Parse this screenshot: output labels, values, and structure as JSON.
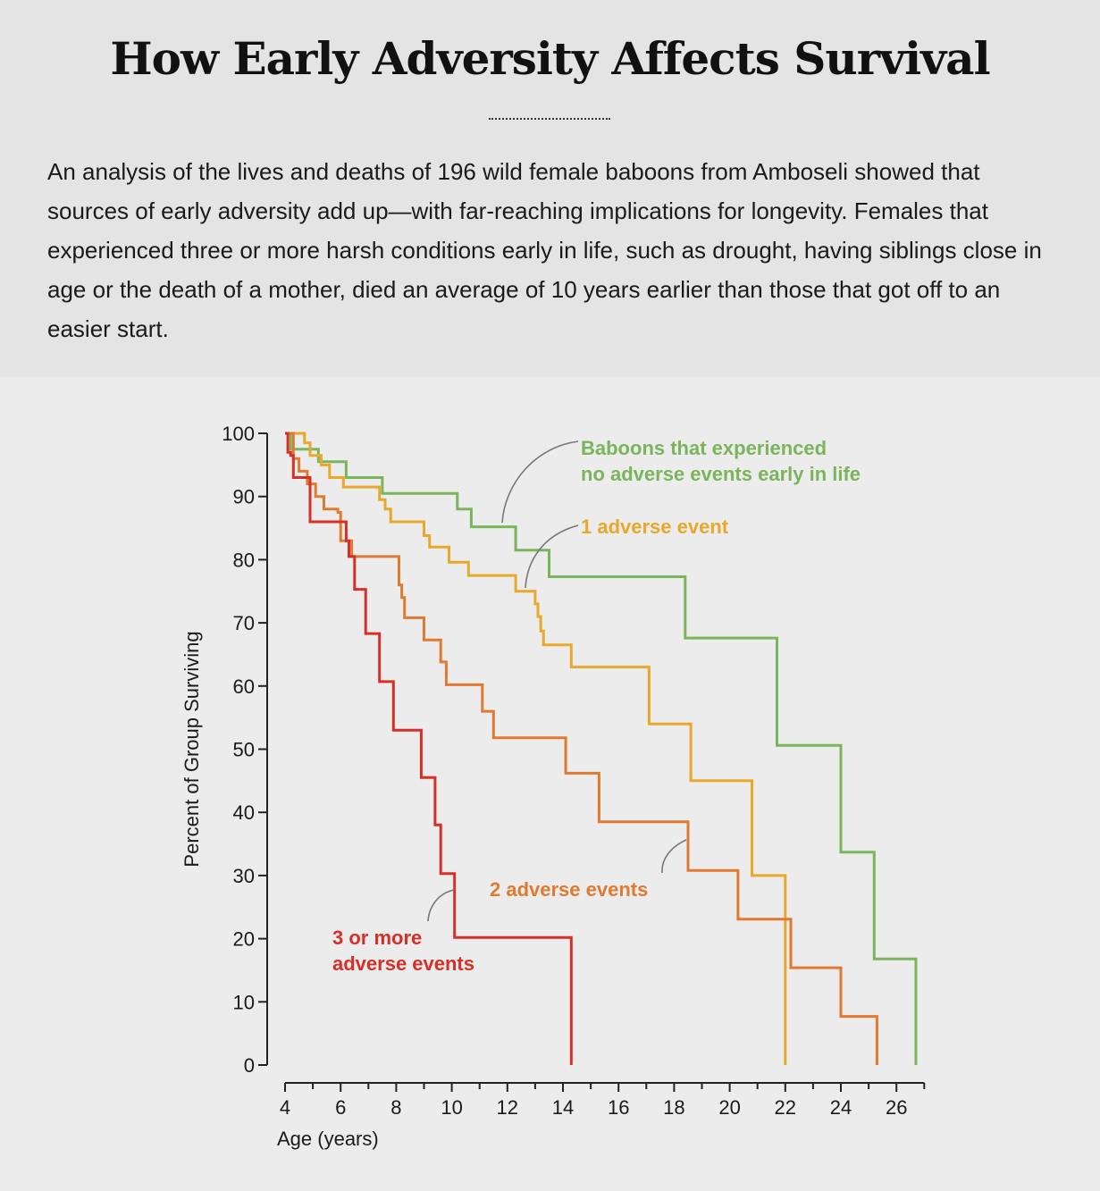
{
  "header": {
    "title": "How Early Adversity Affects Survival",
    "intro": "An analysis of the lives and deaths of 196 wild female baboons from Amboseli showed that sources of early adversity add up—with far-reaching implications for longevity. Females that experienced three or more harsh conditions early in life, such as drought, having siblings close in age or the death of a mother, died an average of 10 years earlier than those that got off to an easier start."
  },
  "chart_data": {
    "type": "line",
    "step": true,
    "xlabel": "Age (years)",
    "ylabel": "Percent of Group Surviving",
    "xlim": [
      4,
      27
    ],
    "ylim": [
      0,
      100
    ],
    "x_ticks": [
      4,
      6,
      8,
      10,
      12,
      14,
      16,
      18,
      20,
      22,
      24,
      26
    ],
    "y_ticks": [
      0,
      10,
      20,
      30,
      40,
      50,
      60,
      70,
      80,
      90,
      100
    ],
    "grid": false,
    "series": [
      {
        "name": "Baboons that experienced no adverse events early in life",
        "color": "#7ab55c",
        "points": [
          [
            4,
            100
          ],
          [
            4.2,
            100
          ],
          [
            4.2,
            97.5
          ],
          [
            5.2,
            97.5
          ],
          [
            5.2,
            95.5
          ],
          [
            6.2,
            95.5
          ],
          [
            6.2,
            93
          ],
          [
            7.5,
            93
          ],
          [
            7.5,
            90.5
          ],
          [
            10.2,
            90.5
          ],
          [
            10.2,
            88
          ],
          [
            10.7,
            88
          ],
          [
            10.7,
            85.2
          ],
          [
            12.3,
            85.2
          ],
          [
            12.3,
            81.5
          ],
          [
            13.5,
            81.5
          ],
          [
            13.5,
            77.3
          ],
          [
            18.4,
            77.3
          ],
          [
            18.4,
            67.6
          ],
          [
            21.7,
            67.6
          ],
          [
            21.7,
            50.6
          ],
          [
            24,
            50.6
          ],
          [
            24,
            33.7
          ],
          [
            25.2,
            33.7
          ],
          [
            25.2,
            16.8
          ],
          [
            26.7,
            16.8
          ],
          [
            26.7,
            0
          ]
        ]
      },
      {
        "name": "1 adverse event",
        "color": "#e8a82a",
        "points": [
          [
            4,
            100
          ],
          [
            4.7,
            100
          ],
          [
            4.7,
            98.5
          ],
          [
            4.9,
            98.5
          ],
          [
            4.9,
            96.5
          ],
          [
            5.3,
            96.5
          ],
          [
            5.3,
            95
          ],
          [
            5.6,
            95
          ],
          [
            5.6,
            93
          ],
          [
            6.1,
            93
          ],
          [
            6.1,
            91.5
          ],
          [
            7.4,
            91.5
          ],
          [
            7.4,
            89.5
          ],
          [
            7.6,
            89.5
          ],
          [
            7.6,
            88
          ],
          [
            7.8,
            88
          ],
          [
            7.8,
            86
          ],
          [
            9,
            86
          ],
          [
            9,
            83.8
          ],
          [
            9.2,
            83.8
          ],
          [
            9.2,
            82
          ],
          [
            9.9,
            82
          ],
          [
            9.9,
            79.6
          ],
          [
            10.6,
            79.6
          ],
          [
            10.6,
            77.5
          ],
          [
            12.3,
            77.5
          ],
          [
            12.3,
            75
          ],
          [
            13,
            75
          ],
          [
            13,
            73
          ],
          [
            13.1,
            73
          ],
          [
            13.1,
            71
          ],
          [
            13.2,
            71
          ],
          [
            13.2,
            68.7
          ],
          [
            13.3,
            68.7
          ],
          [
            13.3,
            66.5
          ],
          [
            14.3,
            66.5
          ],
          [
            14.3,
            63
          ],
          [
            17.1,
            63
          ],
          [
            17.1,
            54
          ],
          [
            18.6,
            54
          ],
          [
            18.6,
            45
          ],
          [
            20.8,
            45
          ],
          [
            20.8,
            30
          ],
          [
            22,
            30
          ],
          [
            22,
            0
          ]
        ]
      },
      {
        "name": "2 adverse events",
        "color": "#e07a30",
        "points": [
          [
            4,
            100
          ],
          [
            4.3,
            100
          ],
          [
            4.3,
            96
          ],
          [
            4.5,
            96
          ],
          [
            4.5,
            94
          ],
          [
            4.8,
            94
          ],
          [
            4.8,
            92
          ],
          [
            5.1,
            92
          ],
          [
            5.1,
            90
          ],
          [
            5.4,
            90
          ],
          [
            5.4,
            88
          ],
          [
            5.9,
            88
          ],
          [
            5.9,
            87.5
          ],
          [
            6,
            87.5
          ],
          [
            6,
            83
          ],
          [
            6.4,
            83
          ],
          [
            6.4,
            80.5
          ],
          [
            8.1,
            80.5
          ],
          [
            8.1,
            76
          ],
          [
            8.2,
            76
          ],
          [
            8.2,
            74
          ],
          [
            8.3,
            74
          ],
          [
            8.3,
            70.8
          ],
          [
            9,
            70.8
          ],
          [
            9,
            67.3
          ],
          [
            9.6,
            67.3
          ],
          [
            9.6,
            63.8
          ],
          [
            9.8,
            63.8
          ],
          [
            9.8,
            60.2
          ],
          [
            11.1,
            60.2
          ],
          [
            11.1,
            56
          ],
          [
            11.5,
            56
          ],
          [
            11.5,
            51.8
          ],
          [
            14.1,
            51.8
          ],
          [
            14.1,
            46.2
          ],
          [
            15.3,
            46.2
          ],
          [
            15.3,
            38.5
          ],
          [
            18.5,
            38.5
          ],
          [
            18.5,
            30.8
          ],
          [
            20.3,
            30.8
          ],
          [
            20.3,
            23.1
          ],
          [
            22.2,
            23.1
          ],
          [
            22.2,
            15.4
          ],
          [
            24,
            15.4
          ],
          [
            24,
            7.7
          ],
          [
            25.3,
            7.7
          ],
          [
            25.3,
            0
          ]
        ]
      },
      {
        "name": "3 or more adverse events",
        "color": "#d62f27",
        "points": [
          [
            4,
            100
          ],
          [
            4.1,
            100
          ],
          [
            4.1,
            97
          ],
          [
            4.2,
            97
          ],
          [
            4.2,
            96.5
          ],
          [
            4.3,
            96.5
          ],
          [
            4.3,
            93
          ],
          [
            4.9,
            93
          ],
          [
            4.9,
            86
          ],
          [
            6.2,
            86
          ],
          [
            6.2,
            83
          ],
          [
            6.3,
            83
          ],
          [
            6.3,
            80.5
          ],
          [
            6.5,
            80.5
          ],
          [
            6.5,
            75.3
          ],
          [
            6.9,
            75.3
          ],
          [
            6.9,
            68.3
          ],
          [
            7.4,
            68.3
          ],
          [
            7.4,
            60.7
          ],
          [
            7.9,
            60.7
          ],
          [
            7.9,
            53
          ],
          [
            8.9,
            53
          ],
          [
            8.9,
            45.5
          ],
          [
            9.4,
            45.5
          ],
          [
            9.4,
            38
          ],
          [
            9.6,
            38
          ],
          [
            9.6,
            30.3
          ],
          [
            10.1,
            30.3
          ],
          [
            10.1,
            20.2
          ],
          [
            14.3,
            20.2
          ],
          [
            14.3,
            0
          ]
        ]
      }
    ],
    "annotations": [
      {
        "series": 0,
        "lines": [
          "Baboons that experienced",
          "no adverse events early in life"
        ]
      },
      {
        "series": 1,
        "lines": [
          "1 adverse event"
        ]
      },
      {
        "series": 2,
        "lines": [
          "2 adverse events"
        ]
      },
      {
        "series": 3,
        "lines": [
          "3 or more",
          "adverse events"
        ]
      }
    ]
  }
}
